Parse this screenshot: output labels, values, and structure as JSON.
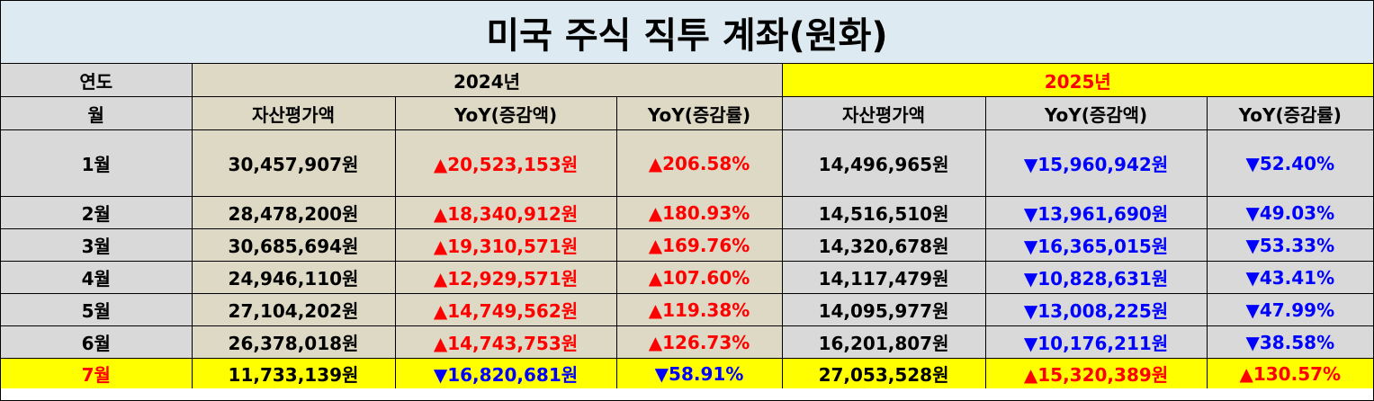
{
  "title": "미국 주식 직투 계좌(원화)",
  "header": {
    "year_label": "연도",
    "month_label": "월",
    "year_2024": "2024년",
    "year_2025": "2025년",
    "col_asset": "자산평가액",
    "col_yoy_amount": "YoY(증감액)",
    "col_yoy_rate": "YoY(증감률)"
  },
  "colors": {
    "title_bg": "#deeaf1",
    "beige": "#ddd9c4",
    "gray": "#d9d9d9",
    "highlight": "#ffff00",
    "up": "#ff0000",
    "down": "#0000ff"
  },
  "rows": [
    {
      "month": "1월",
      "a2024": "30,457,907원",
      "d2024": "▲20,523,153원",
      "r2024": "▲206.58%",
      "a2025": "14,496,965원",
      "d2025": "▼15,960,942원",
      "r2025": "▼52.40%"
    },
    {
      "month": "2월",
      "a2024": "28,478,200원",
      "d2024": "▲18,340,912원",
      "r2024": "▲180.93%",
      "a2025": "14,516,510원",
      "d2025": "▼13,961,690원",
      "r2025": "▼49.03%"
    },
    {
      "month": "3월",
      "a2024": "30,685,694원",
      "d2024": "▲19,310,571원",
      "r2024": "▲169.76%",
      "a2025": "14,320,678원",
      "d2025": "▼16,365,015원",
      "r2025": "▼53.33%"
    },
    {
      "month": "4월",
      "a2024": "24,946,110원",
      "d2024": "▲12,929,571원",
      "r2024": "▲107.60%",
      "a2025": "14,117,479원",
      "d2025": "▼10,828,631원",
      "r2025": "▼43.41%"
    },
    {
      "month": "5월",
      "a2024": "27,104,202원",
      "d2024": "▲14,749,562원",
      "r2024": "▲119.38%",
      "a2025": "14,095,977원",
      "d2025": "▼13,008,225원",
      "r2025": "▼47.99%"
    },
    {
      "month": "6월",
      "a2024": "26,378,018원",
      "d2024": "▲14,743,753원",
      "r2024": "▲126.73%",
      "a2025": "16,201,807원",
      "d2025": "▼10,176,211원",
      "r2025": "▼38.58%"
    },
    {
      "month": "7월",
      "a2024": "11,733,139원",
      "d2024": "▼16,820,681원",
      "r2024": "▼58.91%",
      "a2025": "27,053,528원",
      "d2025": "▲15,320,389원",
      "r2025": "▲130.57%"
    }
  ]
}
